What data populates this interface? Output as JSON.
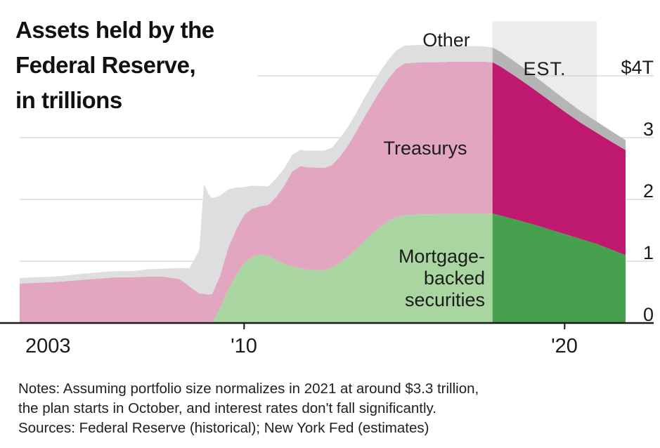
{
  "title": {
    "line1": "Assets held by the",
    "line2": "Federal Reserve,",
    "line3": "in trillions"
  },
  "area_labels": {
    "other": "Other",
    "treasurys": "Treasurys",
    "mbs_line1": "Mortgage-",
    "mbs_line2": "backed",
    "mbs_line3": "securities"
  },
  "estimate_label": "EST.",
  "axis": {
    "y_labels": [
      "$4T",
      "3",
      "2",
      "1",
      "0"
    ],
    "x_labels": [
      "2003",
      "'10",
      "'20"
    ]
  },
  "notes": {
    "line1": "Notes: Assuming portfolio size normalizes in 2021 at around $3.3 trillion,",
    "line2": "the plan starts in October, and interest rates don't fall significantly.",
    "sources": "Sources: Federal Reserve (historical); New York Fed (estimates)"
  },
  "chart_data": {
    "type": "area",
    "stacked": true,
    "title": "Assets held by the Federal Reserve, in trillions",
    "unit": "trillions of dollars",
    "x": [
      2003.0,
      2003.5,
      2004.0,
      2004.5,
      2005.0,
      2005.5,
      2006.0,
      2006.5,
      2007.0,
      2007.5,
      2008.0,
      2008.3,
      2008.6,
      2008.75,
      2008.9,
      2009.0,
      2009.25,
      2009.5,
      2009.75,
      2010.0,
      2010.25,
      2010.5,
      2010.75,
      2011.0,
      2011.25,
      2011.5,
      2011.75,
      2012.0,
      2012.5,
      2012.75,
      2013.0,
      2013.25,
      2013.5,
      2013.75,
      2014.0,
      2014.25,
      2014.5,
      2014.75,
      2015.0,
      2015.5,
      2016.0,
      2016.5,
      2017.0,
      2017.4,
      2017.75,
      2018.0,
      2018.5,
      2019.0,
      2019.5,
      2020.0,
      2020.5,
      2021.0,
      2021.5,
      2021.9
    ],
    "series": [
      {
        "name": "Mortgage-backed securities",
        "color_historical": "#a9d5a0",
        "color_estimate": "#46a04e",
        "values": [
          0,
          0,
          0,
          0,
          0,
          0,
          0,
          0,
          0,
          0,
          0,
          0,
          0,
          0,
          0,
          0.01,
          0.24,
          0.54,
          0.77,
          0.97,
          1.07,
          1.11,
          1.09,
          1.02,
          0.96,
          0.92,
          0.89,
          0.86,
          0.85,
          0.9,
          0.98,
          1.08,
          1.2,
          1.33,
          1.45,
          1.56,
          1.65,
          1.71,
          1.74,
          1.76,
          1.76,
          1.77,
          1.77,
          1.77,
          1.77,
          1.74,
          1.67,
          1.6,
          1.52,
          1.44,
          1.36,
          1.28,
          1.18,
          1.1
        ]
      },
      {
        "name": "Treasurys",
        "color_historical": "#e2a6c0",
        "color_estimate": "#c01a70",
        "values": [
          0.64,
          0.65,
          0.66,
          0.68,
          0.7,
          0.72,
          0.74,
          0.74,
          0.75,
          0.75,
          0.71,
          0.59,
          0.48,
          0.47,
          0.46,
          0.46,
          0.52,
          0.67,
          0.74,
          0.78,
          0.78,
          0.78,
          0.82,
          1.02,
          1.26,
          1.53,
          1.65,
          1.66,
          1.66,
          1.66,
          1.72,
          1.8,
          1.9,
          2.0,
          2.1,
          2.2,
          2.3,
          2.4,
          2.46,
          2.46,
          2.46,
          2.46,
          2.46,
          2.46,
          2.45,
          2.41,
          2.31,
          2.2,
          2.09,
          1.98,
          1.88,
          1.8,
          1.74,
          1.7
        ]
      },
      {
        "name": "Other",
        "color_historical": "#dedede",
        "color_estimate": "#b5b5b5",
        "values": [
          0.09,
          0.09,
          0.09,
          0.09,
          0.1,
          0.1,
          0.1,
          0.1,
          0.12,
          0.13,
          0.18,
          0.3,
          0.7,
          1.78,
          1.62,
          1.55,
          1.3,
          0.95,
          0.68,
          0.45,
          0.37,
          0.33,
          0.3,
          0.3,
          0.28,
          0.27,
          0.26,
          0.27,
          0.28,
          0.28,
          0.3,
          0.3,
          0.3,
          0.31,
          0.31,
          0.31,
          0.31,
          0.3,
          0.29,
          0.28,
          0.27,
          0.26,
          0.25,
          0.25,
          0.24,
          0.24,
          0.23,
          0.22,
          0.21,
          0.2,
          0.19,
          0.18,
          0.17,
          0.16
        ]
      }
    ],
    "estimate_start_x": 2017.75,
    "estimate_band_end_x": 2021.0,
    "estimate_band_color": "#ececec",
    "x_range": [
      2003,
      2021.9
    ],
    "y_range": [
      0,
      4.6
    ],
    "y_ticks": [
      0,
      1,
      2,
      3,
      4
    ],
    "x_tick_marks": [
      2010,
      2020
    ],
    "grid": true,
    "gridline_color": "#c9c9c9",
    "axis_color": "#1a1a1a",
    "legend_position": "inline-labels"
  }
}
